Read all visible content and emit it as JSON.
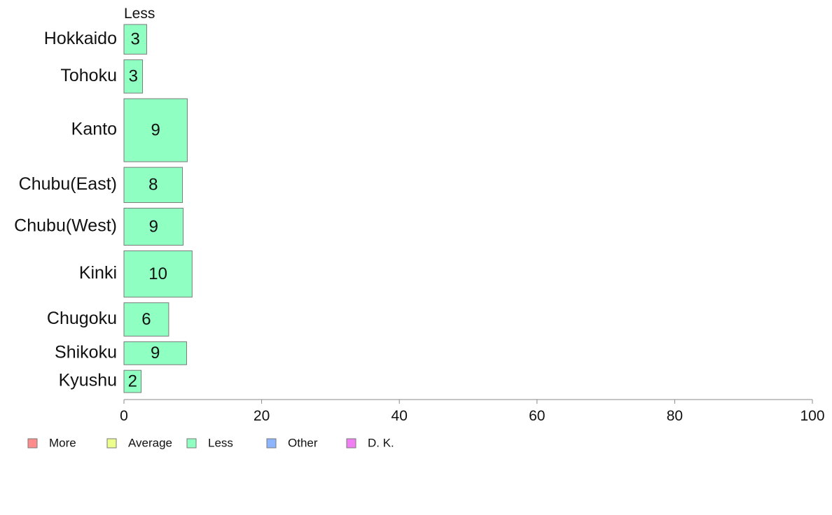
{
  "chart_data": {
    "type": "bar",
    "orientation": "horizontal",
    "column_header": "Less",
    "categories": [
      "Hokkaido",
      "Tohoku",
      "Kanto",
      "Chubu(East)",
      "Chubu(West)",
      "Kinki",
      "Chugoku",
      "Shikoku",
      "Kyushu"
    ],
    "row_weights": [
      0.8,
      0.9,
      1.7,
      0.95,
      1.0,
      1.25,
      0.9,
      0.62,
      0.6
    ],
    "series": [
      {
        "name": "Less",
        "color": "#8fffc2",
        "values": [
          3.3,
          2.7,
          9.2,
          8.5,
          8.6,
          9.9,
          6.5,
          9.1,
          2.5
        ],
        "labels": [
          "3",
          "3",
          "9",
          "8",
          "9",
          "10",
          "6",
          "9",
          "2"
        ]
      }
    ],
    "xlim": [
      0,
      100
    ],
    "xticks": [
      "0",
      "20",
      "40",
      "60",
      "80",
      "100"
    ],
    "grid": false,
    "legend_position": "bottom-left",
    "legend": [
      {
        "label": "More",
        "color": "#ff8c8c"
      },
      {
        "label": "Average",
        "color": "#ecff8c"
      },
      {
        "label": "Less",
        "color": "#8fffc2"
      },
      {
        "label": "Other",
        "color": "#8cb4ff"
      },
      {
        "label": "D. K.",
        "color": "#f07ff2"
      }
    ]
  }
}
